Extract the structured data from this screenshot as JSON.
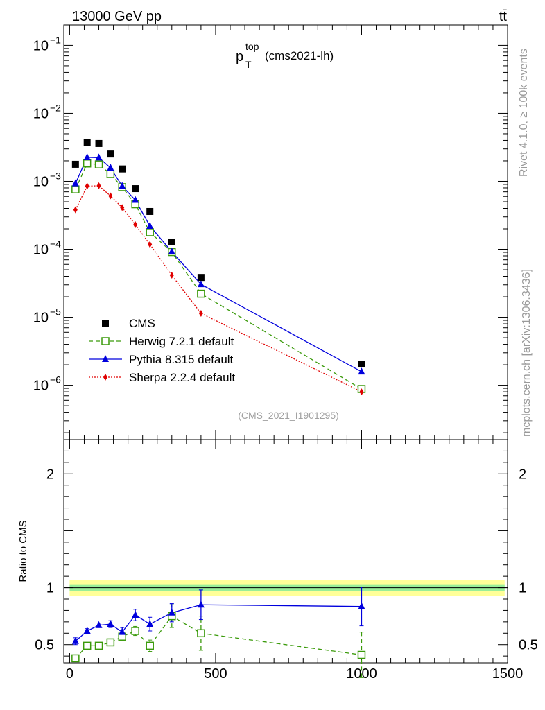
{
  "header": {
    "energy": "13000 GeV pp",
    "process": "tt̄"
  },
  "side": {
    "rivet": "Rivet 4.1.0, ≥ 100k events",
    "source": "mcplots.cern.ch [arXiv:1306.3436]"
  },
  "chart_data": {
    "type": "line",
    "title_main": "p",
    "title_sup": "top",
    "title_sub": "T",
    "title_rest": "(cms2021-lh)",
    "watermark": "(CMS_2021_I1901295)",
    "ratio_ylabel": "Ratio to CMS",
    "xlim": [
      -20,
      1500
    ],
    "ylim_log": [
      -6.8,
      -0.7
    ],
    "ratio_ylim": [
      0.34,
      2.3
    ],
    "y_ticks": [
      {
        "v": -6,
        "base": "10",
        "exp": "−6"
      },
      {
        "v": -5,
        "base": "10",
        "exp": "−5"
      },
      {
        "v": -4,
        "base": "10",
        "exp": "−4"
      },
      {
        "v": -3,
        "base": "10",
        "exp": "−3"
      },
      {
        "v": -2,
        "base": "10",
        "exp": "−2"
      },
      {
        "v": -1,
        "base": "10",
        "exp": "−1"
      }
    ],
    "ratio_ticks": [
      {
        "v": 0.5,
        "label": "0.5"
      },
      {
        "v": 1,
        "label": "1"
      },
      {
        "v": 2,
        "label": "2"
      }
    ],
    "x_ticks": [
      {
        "v": 0,
        "label": "0"
      },
      {
        "v": 500,
        "label": "500"
      },
      {
        "v": 1000,
        "label": "1000"
      },
      {
        "v": 1500,
        "label": "1500"
      }
    ],
    "x": [
      20,
      60,
      100,
      140,
      180,
      225,
      275,
      350,
      450,
      1000
    ],
    "cms": [
      0.00178,
      0.00375,
      0.0036,
      0.00252,
      0.00152,
      0.00078,
      0.00036,
      0.000128,
      3.85e-05,
      2.05e-06
    ],
    "series": [
      {
        "name": "Herwig 7.2.1 default",
        "color": "#3a9a0a",
        "dash": "6,4",
        "marker": "open-square",
        "values": [
          0.00076,
          0.00183,
          0.00177,
          0.00128,
          0.00082,
          0.00046,
          0.000178,
          9.1e-05,
          2.22e-05,
          8.8e-07
        ],
        "ratio": [
          0.38,
          0.49,
          0.49,
          0.52,
          0.57,
          0.62,
          0.49,
          0.75,
          0.6,
          0.41
        ],
        "ratio_err": [
          0.02,
          0.015,
          0.015,
          0.02,
          0.03,
          0.04,
          0.05,
          0.1,
          0.15,
          0.2
        ]
      },
      {
        "name": "Pythia 8.315 default",
        "color": "#0000dd",
        "dash": "",
        "marker": "triangle",
        "values": [
          0.00093,
          0.00225,
          0.00223,
          0.00158,
          0.00085,
          0.00053,
          0.00022,
          9.2e-05,
          3.05e-05,
          1.58e-06
        ],
        "ratio": [
          0.53,
          0.62,
          0.67,
          0.68,
          0.61,
          0.76,
          0.68,
          0.78,
          0.85,
          0.835
        ],
        "ratio_err": [
          0.03,
          0.02,
          0.02,
          0.03,
          0.04,
          0.05,
          0.06,
          0.08,
          0.13,
          0.17
        ]
      },
      {
        "name": "Sherpa 2.2.4 default",
        "color": "#e00000",
        "dash": "2,2",
        "marker": "diamond",
        "values": [
          0.00038,
          0.00085,
          0.00086,
          0.00061,
          0.00041,
          0.00023,
          0.000118,
          4.15e-05,
          1.14e-05,
          8e-07
        ],
        "ratio": null,
        "ratio_err": null
      }
    ],
    "legend": [
      {
        "label": "CMS"
      },
      {
        "label": "Herwig 7.2.1 default"
      },
      {
        "label": "Pythia 8.315 default"
      },
      {
        "label": "Sherpa 2.2.4 default"
      }
    ],
    "band_inner": 0.03,
    "band_outer": 0.07
  }
}
